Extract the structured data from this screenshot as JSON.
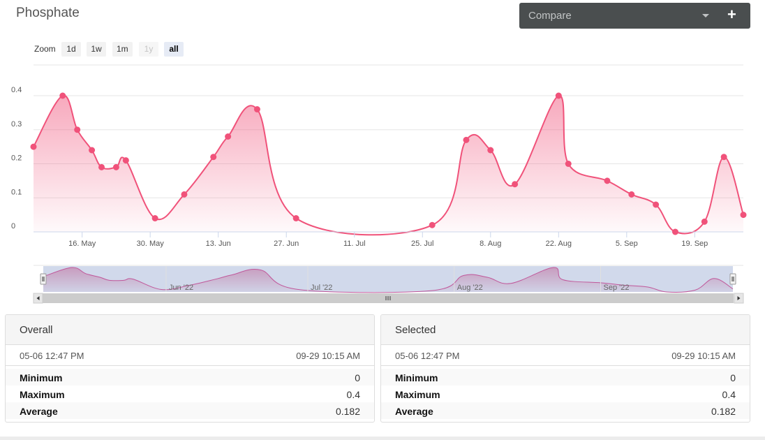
{
  "title": "Phosphate",
  "compare": {
    "label": "Compare",
    "caret_icon": "caret-down-icon",
    "add_icon": "plus-icon"
  },
  "zoom": {
    "label": "Zoom",
    "buttons": [
      {
        "label": "1d",
        "state": "normal"
      },
      {
        "label": "1w",
        "state": "normal"
      },
      {
        "label": "1m",
        "state": "normal"
      },
      {
        "label": "1y",
        "state": "disabled"
      },
      {
        "label": "all",
        "state": "active"
      }
    ]
  },
  "chart_data": {
    "type": "area",
    "title": "Phosphate",
    "xlabel": "",
    "ylabel": "",
    "ylim": [
      0,
      0.4
    ],
    "yticks": [
      "0",
      "0.1",
      "0.2",
      "0.3",
      "0.4"
    ],
    "xticks": [
      "16. May",
      "30. May",
      "13. Jun",
      "27. Jun",
      "11. Jul",
      "25. Jul",
      "8. Aug",
      "22. Aug",
      "5. Sep",
      "19. Sep"
    ],
    "xlim": [
      "2022-05-06",
      "2022-09-29"
    ],
    "grid": true,
    "legend": "none",
    "color": "#f0527a",
    "series": [
      {
        "points": [
          {
            "x": "2022-05-06",
            "y": 0.25
          },
          {
            "x": "2022-05-12",
            "y": 0.4
          },
          {
            "x": "2022-05-15",
            "y": 0.3
          },
          {
            "x": "2022-05-18",
            "y": 0.24
          },
          {
            "x": "2022-05-20",
            "y": 0.19
          },
          {
            "x": "2022-05-23",
            "y": 0.19
          },
          {
            "x": "2022-05-25",
            "y": 0.21
          },
          {
            "x": "2022-05-31",
            "y": 0.04
          },
          {
            "x": "2022-06-06",
            "y": 0.11
          },
          {
            "x": "2022-06-12",
            "y": 0.22
          },
          {
            "x": "2022-06-15",
            "y": 0.28
          },
          {
            "x": "2022-06-21",
            "y": 0.36
          },
          {
            "x": "2022-06-29",
            "y": 0.04
          },
          {
            "x": "2022-07-27",
            "y": 0.02
          },
          {
            "x": "2022-08-03",
            "y": 0.27
          },
          {
            "x": "2022-08-08",
            "y": 0.24
          },
          {
            "x": "2022-08-13",
            "y": 0.14
          },
          {
            "x": "2022-08-22",
            "y": 0.4
          },
          {
            "x": "2022-08-24",
            "y": 0.2
          },
          {
            "x": "2022-09-01",
            "y": 0.15
          },
          {
            "x": "2022-09-06",
            "y": 0.11
          },
          {
            "x": "2022-09-11",
            "y": 0.08
          },
          {
            "x": "2022-09-15",
            "y": 0.0
          },
          {
            "x": "2022-09-21",
            "y": 0.03
          },
          {
            "x": "2022-09-25",
            "y": 0.22
          },
          {
            "x": "2022-09-29",
            "y": 0.05
          }
        ]
      }
    ],
    "navigator": {
      "labels": [
        "Jun '22",
        "Jul '22",
        "Aug '22",
        "Sep '22"
      ],
      "scrollbar_grip_icon": "grip-lines-icon",
      "left_arrow_icon": "arrow-left-icon",
      "right_arrow_icon": "arrow-right-icon"
    }
  },
  "panels": {
    "overall": {
      "heading": "Overall",
      "start": "05-06 12:47 PM",
      "end": "09-29 10:15 AM",
      "stats": [
        {
          "label": "Minimum",
          "value": "0"
        },
        {
          "label": "Maximum",
          "value": "0.4"
        },
        {
          "label": "Average",
          "value": "0.182"
        }
      ]
    },
    "selected": {
      "heading": "Selected",
      "start": "05-06 12:47 PM",
      "end": "09-29 10:15 AM",
      "stats": [
        {
          "label": "Minimum",
          "value": "0"
        },
        {
          "label": "Maximum",
          "value": "0.4"
        },
        {
          "label": "Average",
          "value": "0.182"
        }
      ]
    }
  }
}
